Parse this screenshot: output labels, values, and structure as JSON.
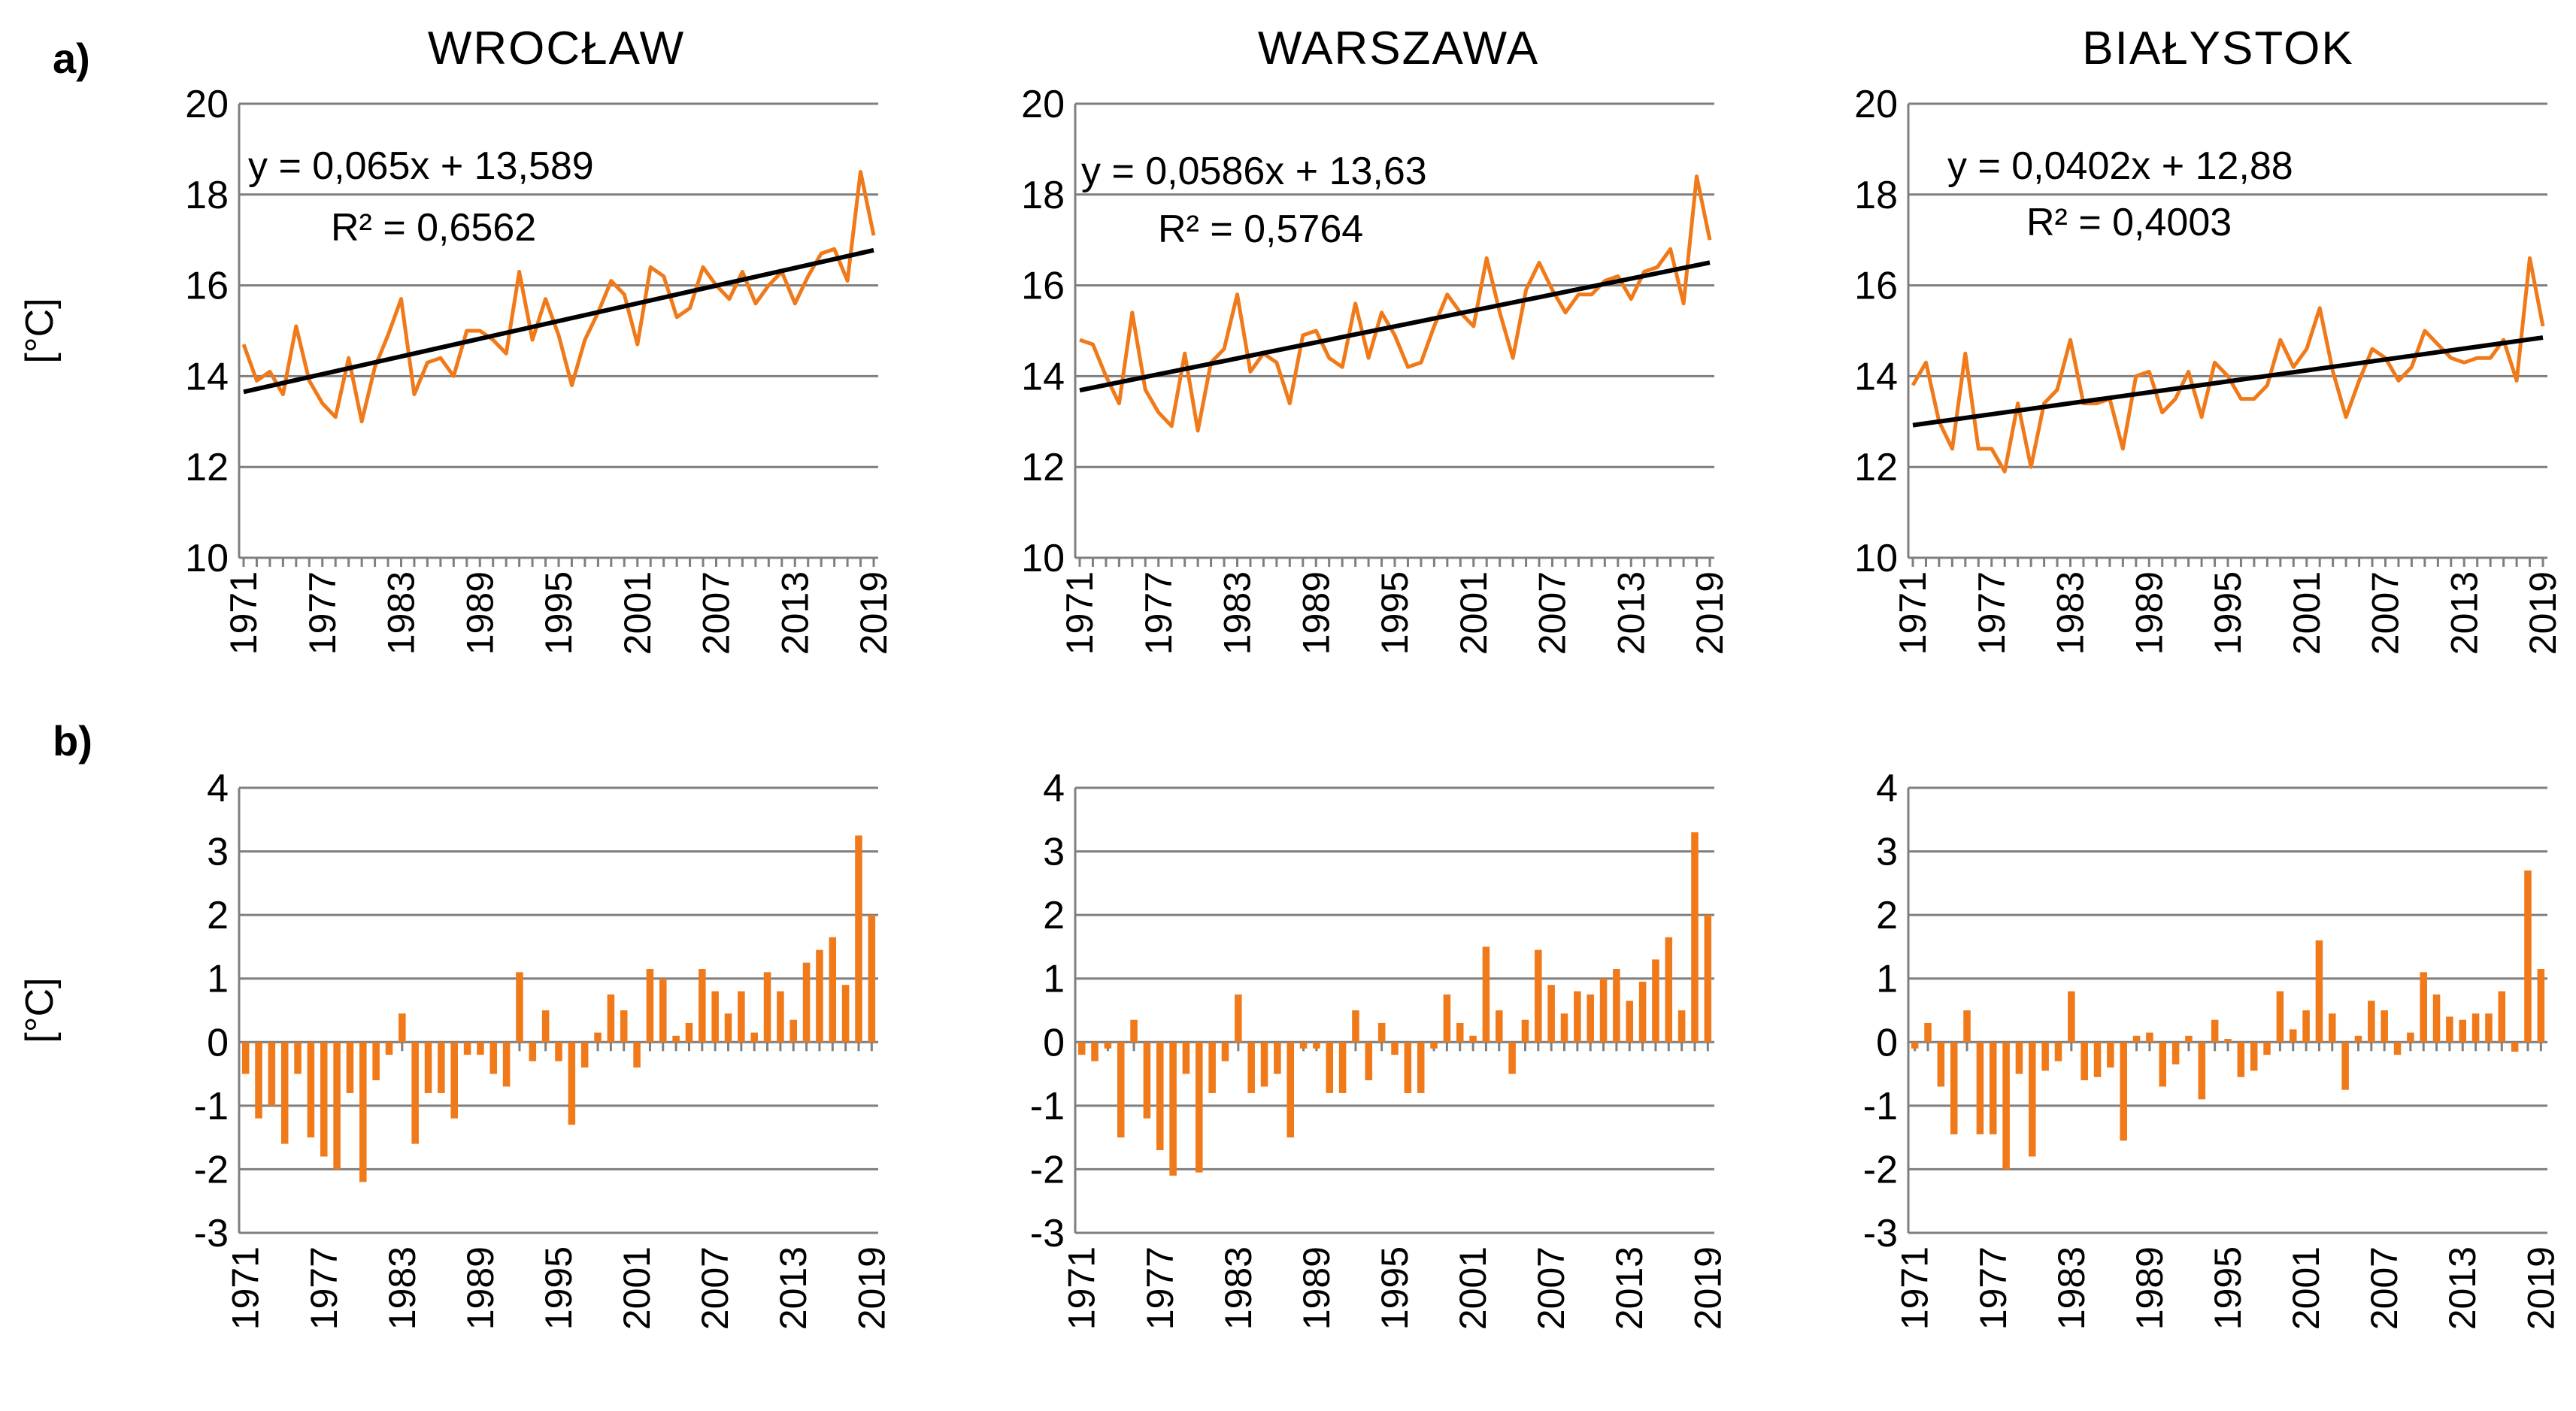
{
  "panel_labels": {
    "a": "a)",
    "b": "b)"
  },
  "y_axis_label": "[°C]",
  "x_tick_labels": [
    "1971",
    "1977",
    "1983",
    "1989",
    "1995",
    "2001",
    "2007",
    "2013",
    "2019"
  ],
  "colors": {
    "series": "#F07A1A",
    "trend": "#000000",
    "grid": "#7f7f7f",
    "axis": "#7f7f7f"
  },
  "chart_data": [
    {
      "type": "line",
      "panel": "a",
      "station": "WROCŁAW",
      "title": "WROCŁAW",
      "xlabel": "",
      "ylabel": "[°C]",
      "ylim": [
        10,
        20
      ],
      "yticks": [
        10,
        12,
        14,
        16,
        18,
        20
      ],
      "x_start": 1971,
      "x_end": 2019,
      "values": [
        14.7,
        13.9,
        14.1,
        13.6,
        15.1,
        13.9,
        13.4,
        13.1,
        14.4,
        13.0,
        14.2,
        14.9,
        15.7,
        13.6,
        14.3,
        14.4,
        14.0,
        15.0,
        15.0,
        14.8,
        14.5,
        16.3,
        14.8,
        15.7,
        14.9,
        13.8,
        14.8,
        15.4,
        16.1,
        15.8,
        14.7,
        16.4,
        16.2,
        15.3,
        15.5,
        16.4,
        16.0,
        15.7,
        16.3,
        15.6,
        16.0,
        16.3,
        15.6,
        16.2,
        16.7,
        16.8,
        16.1,
        18.5,
        17.1
      ],
      "trend": {
        "slope": 0.065,
        "intercept": 13.589
      },
      "equation": "y = 0,065x + 13,589",
      "r_squared": "R² = 0,6562"
    },
    {
      "type": "line",
      "panel": "a",
      "station": "WARSZAWA",
      "title": "WARSZAWA",
      "xlabel": "",
      "ylabel": "",
      "ylim": [
        10,
        20
      ],
      "yticks": [
        10,
        12,
        14,
        16,
        18,
        20
      ],
      "x_start": 1971,
      "x_end": 2019,
      "values": [
        14.8,
        14.7,
        14.0,
        13.4,
        15.4,
        13.7,
        13.2,
        12.9,
        14.5,
        12.8,
        14.3,
        14.6,
        15.8,
        14.1,
        14.5,
        14.3,
        13.4,
        14.9,
        15.0,
        14.4,
        14.2,
        15.6,
        14.4,
        15.4,
        14.9,
        14.2,
        14.3,
        15.1,
        15.8,
        15.4,
        15.1,
        16.6,
        15.4,
        14.4,
        15.9,
        16.5,
        15.9,
        15.4,
        15.8,
        15.8,
        16.1,
        16.2,
        15.7,
        16.3,
        16.4,
        16.8,
        15.6,
        18.4,
        17.0
      ],
      "trend": {
        "slope": 0.0586,
        "intercept": 13.63
      },
      "equation": "y = 0,0586x + 13,63",
      "r_squared": "R² = 0,5764"
    },
    {
      "type": "line",
      "panel": "a",
      "station": "BIAŁYSTOK",
      "title": "BIAŁYSTOK",
      "xlabel": "",
      "ylabel": "",
      "ylim": [
        10,
        20
      ],
      "yticks": [
        10,
        12,
        14,
        16,
        18,
        20
      ],
      "x_start": 1971,
      "x_end": 2019,
      "values": [
        13.8,
        14.3,
        13.0,
        12.4,
        14.5,
        12.4,
        12.4,
        11.9,
        13.4,
        12.0,
        13.4,
        13.7,
        14.8,
        13.4,
        13.4,
        13.5,
        12.4,
        14.0,
        14.1,
        13.2,
        13.5,
        14.1,
        13.1,
        14.3,
        14.0,
        13.5,
        13.5,
        13.8,
        14.8,
        14.2,
        14.6,
        15.5,
        14.1,
        13.1,
        13.9,
        14.6,
        14.4,
        13.9,
        14.2,
        15.0,
        14.7,
        14.4,
        14.3,
        14.4,
        14.4,
        14.8,
        13.9,
        16.6,
        15.1
      ],
      "trend": {
        "slope": 0.0402,
        "intercept": 12.88
      },
      "equation": "y = 0,0402x + 12,88",
      "r_squared": "R² = 0,4003"
    },
    {
      "type": "bar",
      "panel": "b",
      "station": "WROCŁAW",
      "title": "",
      "xlabel": "",
      "ylabel": "[°C]",
      "ylim": [
        -3,
        4
      ],
      "yticks": [
        -3,
        -2,
        -1,
        0,
        1,
        2,
        3,
        4
      ],
      "x_start": 1971,
      "x_end": 2019,
      "values": [
        -0.5,
        -1.2,
        -1.0,
        -1.6,
        -0.5,
        -1.5,
        -1.8,
        -2.0,
        -0.8,
        -2.2,
        -0.6,
        -0.2,
        0.45,
        -1.6,
        -0.8,
        -0.8,
        -1.2,
        -0.2,
        -0.2,
        -0.5,
        -0.7,
        1.1,
        -0.3,
        0.5,
        -0.3,
        -1.3,
        -0.4,
        0.15,
        0.75,
        0.5,
        -0.4,
        1.15,
        1.0,
        0.1,
        0.3,
        1.15,
        0.8,
        0.45,
        0.8,
        0.15,
        1.1,
        0.8,
        0.35,
        1.25,
        1.45,
        1.65,
        0.9,
        3.25,
        2.0
      ]
    },
    {
      "type": "bar",
      "panel": "b",
      "station": "WARSZAWA",
      "title": "",
      "xlabel": "",
      "ylabel": "",
      "ylim": [
        -3,
        4
      ],
      "yticks": [
        -3,
        -2,
        -1,
        0,
        1,
        2,
        3,
        4
      ],
      "x_start": 1971,
      "x_end": 2019,
      "values": [
        -0.2,
        -0.3,
        -0.1,
        -1.5,
        0.35,
        -1.2,
        -1.7,
        -2.1,
        -0.5,
        -2.05,
        -0.8,
        -0.3,
        0.75,
        -0.8,
        -0.7,
        -0.5,
        -1.5,
        -0.1,
        -0.1,
        -0.8,
        -0.8,
        0.5,
        -0.6,
        0.3,
        -0.2,
        -0.8,
        -0.8,
        -0.1,
        0.75,
        0.3,
        0.1,
        1.5,
        0.5,
        -0.5,
        0.35,
        1.45,
        0.9,
        0.45,
        0.8,
        0.75,
        1.0,
        1.15,
        0.65,
        0.95,
        1.3,
        1.65,
        0.5,
        3.3,
        2.0
      ]
    },
    {
      "type": "bar",
      "panel": "b",
      "station": "BIAŁYSTOK",
      "title": "",
      "xlabel": "",
      "ylabel": "",
      "ylim": [
        -3,
        4
      ],
      "yticks": [
        -3,
        -2,
        -1,
        0,
        1,
        2,
        3,
        4
      ],
      "x_start": 1971,
      "x_end": 2019,
      "values": [
        -0.1,
        0.3,
        -0.7,
        -1.45,
        0.5,
        -1.45,
        -1.45,
        -2.0,
        -0.5,
        -1.8,
        -0.45,
        -0.3,
        0.8,
        -0.6,
        -0.55,
        -0.4,
        -1.55,
        0.1,
        0.15,
        -0.7,
        -0.35,
        0.1,
        -0.9,
        0.35,
        0.05,
        -0.55,
        -0.45,
        -0.2,
        0.8,
        0.2,
        0.5,
        1.6,
        0.45,
        -0.75,
        0.1,
        0.65,
        0.5,
        -0.2,
        0.15,
        1.1,
        0.75,
        0.4,
        0.35,
        0.45,
        0.45,
        0.8,
        -0.15,
        2.7,
        1.15
      ]
    }
  ]
}
